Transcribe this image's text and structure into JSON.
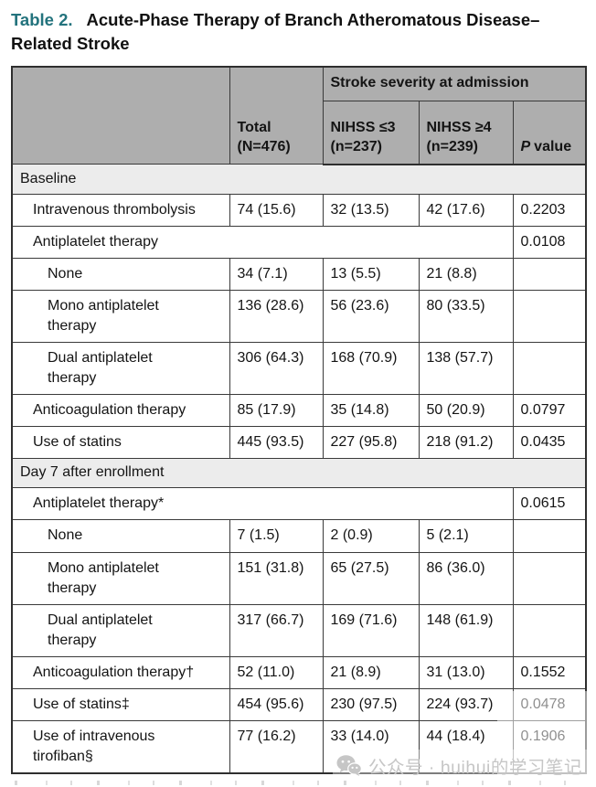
{
  "colors": {
    "accent": "#23737d",
    "header-bg": "#aeaeae",
    "section-bg": "#ececec",
    "border": "#3a3a3a",
    "watermark": "#c6c6c6",
    "text": "#141414"
  },
  "title": {
    "label": "Table 2.",
    "text": "Acute-Phase Therapy of Branch Atheromatous Disease–Related Stroke"
  },
  "table": {
    "header": {
      "group_label": "Stroke severity at admission",
      "total_label": "Total (N=476)",
      "col_nihss_low": "NIHSS ≤3 (n=237)",
      "col_nihss_high": "NIHSS ≥4 (n=239)",
      "p_italic": "P",
      "p_rest": "value"
    },
    "rows": [
      {
        "type": "section",
        "label": "Baseline"
      },
      {
        "type": "data",
        "indent": 1,
        "label": "Intravenous thrombolysis",
        "values": [
          "74 (15.6)",
          "32 (13.5)",
          "42 (17.6)"
        ],
        "p": "0.2203",
        "label_span": false
      },
      {
        "type": "data",
        "indent": 1,
        "label": "Antiplatelet therapy",
        "values": [],
        "p": "0.0108",
        "label_span": true
      },
      {
        "type": "data",
        "indent": 2,
        "label": "None",
        "values": [
          "34 (7.1)",
          "13 (5.5)",
          "21 (8.8)"
        ],
        "p": "",
        "label_span": false
      },
      {
        "type": "data",
        "indent": 2,
        "label": "Mono antiplatelet therapy",
        "values": [
          "136 (28.6)",
          "56 (23.6)",
          "80 (33.5)"
        ],
        "p": "",
        "label_span": false
      },
      {
        "type": "data",
        "indent": 2,
        "label": "Dual antiplatelet therapy",
        "values": [
          "306 (64.3)",
          "168 (70.9)",
          "138 (57.7)"
        ],
        "p": "",
        "label_span": false
      },
      {
        "type": "data",
        "indent": 1,
        "label": "Anticoagulation therapy",
        "values": [
          "85 (17.9)",
          "35 (14.8)",
          "50 (20.9)"
        ],
        "p": "0.0797",
        "label_span": false
      },
      {
        "type": "data",
        "indent": 1,
        "label": "Use of statins",
        "values": [
          "445 (93.5)",
          "227 (95.8)",
          "218 (91.2)"
        ],
        "p": "0.0435",
        "label_span": false
      },
      {
        "type": "section",
        "label": "Day 7 after enrollment"
      },
      {
        "type": "data",
        "indent": 1,
        "label": "Antiplatelet therapy*",
        "values": [],
        "p": "0.0615",
        "label_span": true
      },
      {
        "type": "data",
        "indent": 2,
        "label": "None",
        "values": [
          "7 (1.5)",
          "2 (0.9)",
          "5 (2.1)"
        ],
        "p": "",
        "label_span": false
      },
      {
        "type": "data",
        "indent": 2,
        "label": "Mono antiplatelet therapy",
        "values": [
          "151 (31.8)",
          "65 (27.5)",
          "86 (36.0)"
        ],
        "p": "",
        "label_span": false
      },
      {
        "type": "data",
        "indent": 2,
        "label": "Dual antiplatelet therapy",
        "values": [
          "317 (66.7)",
          "169 (71.6)",
          "148 (61.9)"
        ],
        "p": "",
        "label_span": false
      },
      {
        "type": "data",
        "indent": 1,
        "label": "Anticoagulation therapy†",
        "values": [
          "52 (11.0)",
          "21 (8.9)",
          "31 (13.0)"
        ],
        "p": "0.1552",
        "label_span": false
      },
      {
        "type": "data",
        "indent": 1,
        "label": "Use of statins‡",
        "values": [
          "454 (95.6)",
          "230 (97.5)",
          "224 (93.7)"
        ],
        "p": "0.0478",
        "label_span": false
      },
      {
        "type": "data",
        "indent": 1,
        "label": "Use of intravenous tirofiban§",
        "values": [
          "77 (16.2)",
          "33 (14.0)",
          "44 (18.4)"
        ],
        "p": "0.1906",
        "label_span": false
      }
    ]
  },
  "watermark": {
    "icon": "wechat-icon",
    "text": "公众号 · huihui的学习笔记"
  }
}
